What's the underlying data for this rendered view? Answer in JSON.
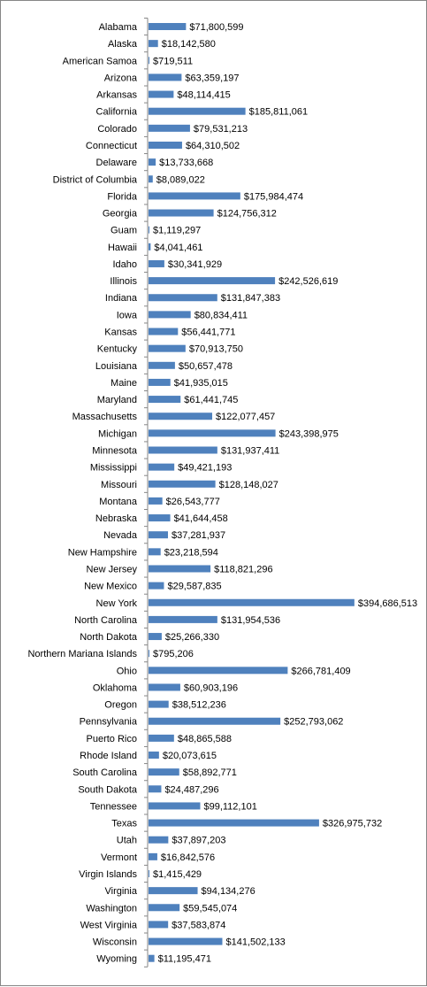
{
  "chart_data": {
    "type": "bar",
    "orientation": "horizontal",
    "title": "",
    "xlabel": "",
    "ylabel": "",
    "legend": "none",
    "grid": false,
    "xlim": [
      0,
      400000000
    ],
    "bar_color": "#4F81BD",
    "categories": [
      "Alabama",
      "Alaska",
      "American Samoa",
      "Arizona",
      "Arkansas",
      "California",
      "Colorado",
      "Connecticut",
      "Delaware",
      "District of Columbia",
      "Florida",
      "Georgia",
      "Guam",
      "Hawaii",
      "Idaho",
      "Illinois",
      "Indiana",
      "Iowa",
      "Kansas",
      "Kentucky",
      "Louisiana",
      "Maine",
      "Maryland",
      "Massachusetts",
      "Michigan",
      "Minnesota",
      "Mississippi",
      "Missouri",
      "Montana",
      "Nebraska",
      "Nevada",
      "New Hampshire",
      "New Jersey",
      "New Mexico",
      "New York",
      "North Carolina",
      "North Dakota",
      "Northern Mariana Islands",
      "Ohio",
      "Oklahoma",
      "Oregon",
      "Pennsylvania",
      "Puerto Rico",
      "Rhode Island",
      "South Carolina",
      "South Dakota",
      "Tennessee",
      "Texas",
      "Utah",
      "Vermont",
      "Virgin Islands",
      "Virginia",
      "Washington",
      "West Virginia",
      "Wisconsin",
      "Wyoming"
    ],
    "values": [
      71800599,
      18142580,
      719511,
      63359197,
      48114415,
      185811061,
      79531213,
      64310502,
      13733668,
      8089022,
      175984474,
      124756312,
      1119297,
      4041461,
      30341929,
      242526619,
      131847383,
      80834411,
      56441771,
      70913750,
      50657478,
      41935015,
      61441745,
      122077457,
      243398975,
      131937411,
      49421193,
      128148027,
      26543777,
      41644458,
      37281937,
      23218594,
      118821296,
      29587835,
      394686513,
      131954536,
      25266330,
      795206,
      266781409,
      60903196,
      38512236,
      252793062,
      48865588,
      20073615,
      58892771,
      24487296,
      99112101,
      326975732,
      37897203,
      16842576,
      1415429,
      94134276,
      59545074,
      37583874,
      141502133,
      11195471
    ],
    "data_labels": [
      "$71,800,599",
      "$18,142,580",
      "$719,511",
      "$63,359,197",
      "$48,114,415",
      "$185,811,061",
      "$79,531,213",
      "$64,310,502",
      "$13,733,668",
      "$8,089,022",
      "$175,984,474",
      "$124,756,312",
      "$1,119,297",
      "$4,041,461",
      "$30,341,929",
      "$242,526,619",
      "$131,847,383",
      "$80,834,411",
      "$56,441,771",
      "$70,913,750",
      "$50,657,478",
      "$41,935,015",
      "$61,441,745",
      "$122,077,457",
      "$243,398,975",
      "$131,937,411",
      "$49,421,193",
      "$128,148,027",
      "$26,543,777",
      "$41,644,458",
      "$37,281,937",
      "$23,218,594",
      "$118,821,296",
      "$29,587,835",
      "$394,686,513",
      "$131,954,536",
      "$25,266,330",
      "$795,206",
      "$266,781,409",
      "$60,903,196",
      "$38,512,236",
      "$252,793,062",
      "$48,865,588",
      "$20,073,615",
      "$58,892,771",
      "$24,487,296",
      "$99,112,101",
      "$326,975,732",
      "$37,897,203",
      "$16,842,576",
      "$1,415,429",
      "$94,134,276",
      "$59,545,074",
      "$37,583,874",
      "$141,502,133",
      "$11,195,471"
    ]
  }
}
